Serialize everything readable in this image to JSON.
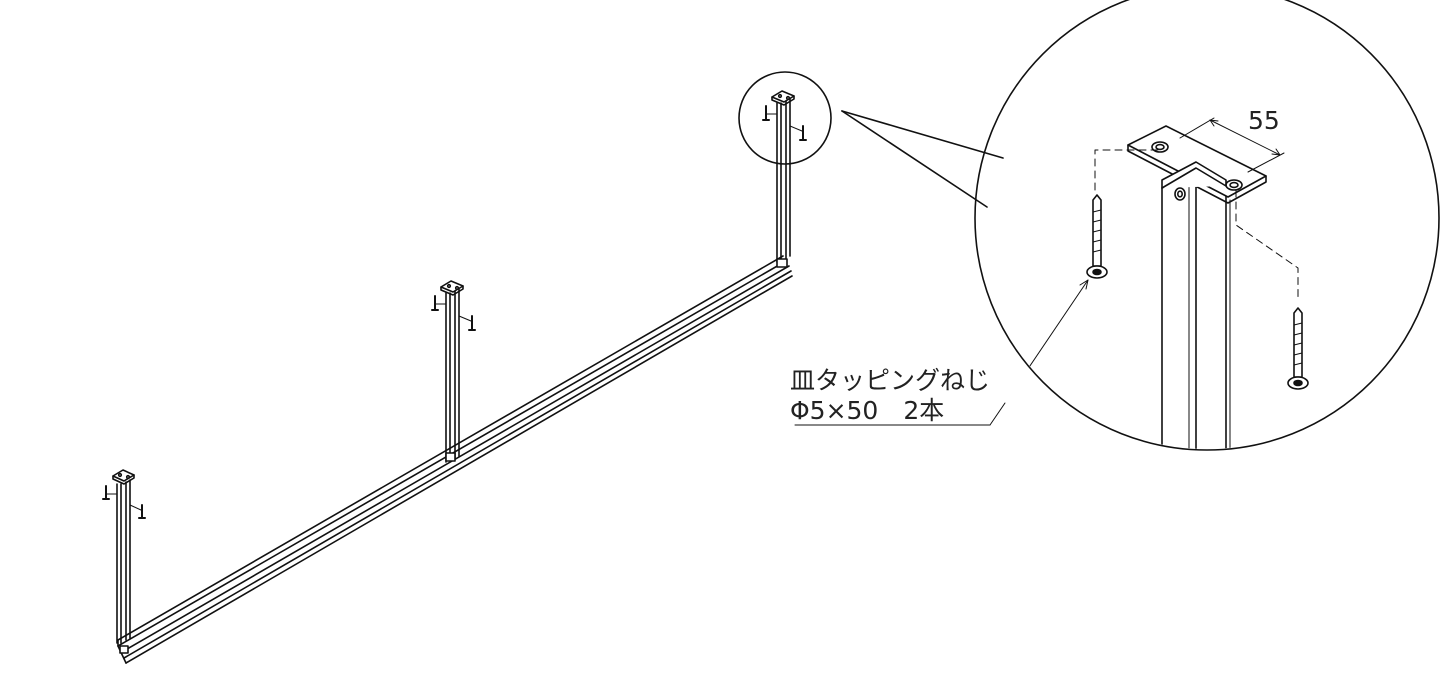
{
  "diagram": {
    "dimension_label": "55",
    "screw_name": "皿タッピングねじ",
    "screw_spec": "Φ5×50　2本"
  }
}
